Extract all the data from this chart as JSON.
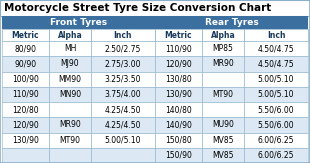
{
  "title": "Motorcycle Street Tyre Size Conversion Chart",
  "header_bg": "#3a6f9f",
  "header_fg": "#ffffff",
  "col_header_fg": "#1a3a5c",
  "odd_row_bg": "#ffffff",
  "even_row_bg": "#dce8f4",
  "border_color": "#8aafc8",
  "title_bg": "#ffffff",
  "front_header": "Front Tyres",
  "rear_header": "Rear Tyres",
  "col_headers": [
    "Metric",
    "Alpha",
    "Inch",
    "Metric",
    "Alpha",
    "Inch"
  ],
  "front_data": [
    [
      "80/90",
      "MH",
      "2.50/2.75"
    ],
    [
      "90/90",
      "MJ90",
      "2.75/3.00"
    ],
    [
      "100/90",
      "MM90",
      "3.25/3.50"
    ],
    [
      "110/90",
      "MN90",
      "3.75/4.00"
    ],
    [
      "120/80",
      "",
      "4.25/4.50"
    ],
    [
      "120/90",
      "MR90",
      "4.25/4.50"
    ],
    [
      "130/90",
      "MT90",
      "5.00/5.10"
    ],
    [
      "",
      "",
      ""
    ]
  ],
  "rear_data": [
    [
      "110/90",
      "MP85",
      "4.50/4.75"
    ],
    [
      "120/90",
      "MR90",
      "4.50/4.75"
    ],
    [
      "130/80",
      "",
      "5.00/5.10"
    ],
    [
      "130/90",
      "MT90",
      "5.00/5.10"
    ],
    [
      "140/80",
      "",
      "5.50/6.00"
    ],
    [
      "140/90",
      "MU90",
      "5.50/6.00"
    ],
    [
      "150/80",
      "MV85",
      "6.00/6.25"
    ],
    [
      "150/90",
      "MV85",
      "6.00/6.25"
    ]
  ],
  "data_font_size": 5.5,
  "header_font_size": 6.5,
  "title_font_size": 7.5,
  "figsize": [
    3.1,
    1.63
  ],
  "dpi": 100
}
